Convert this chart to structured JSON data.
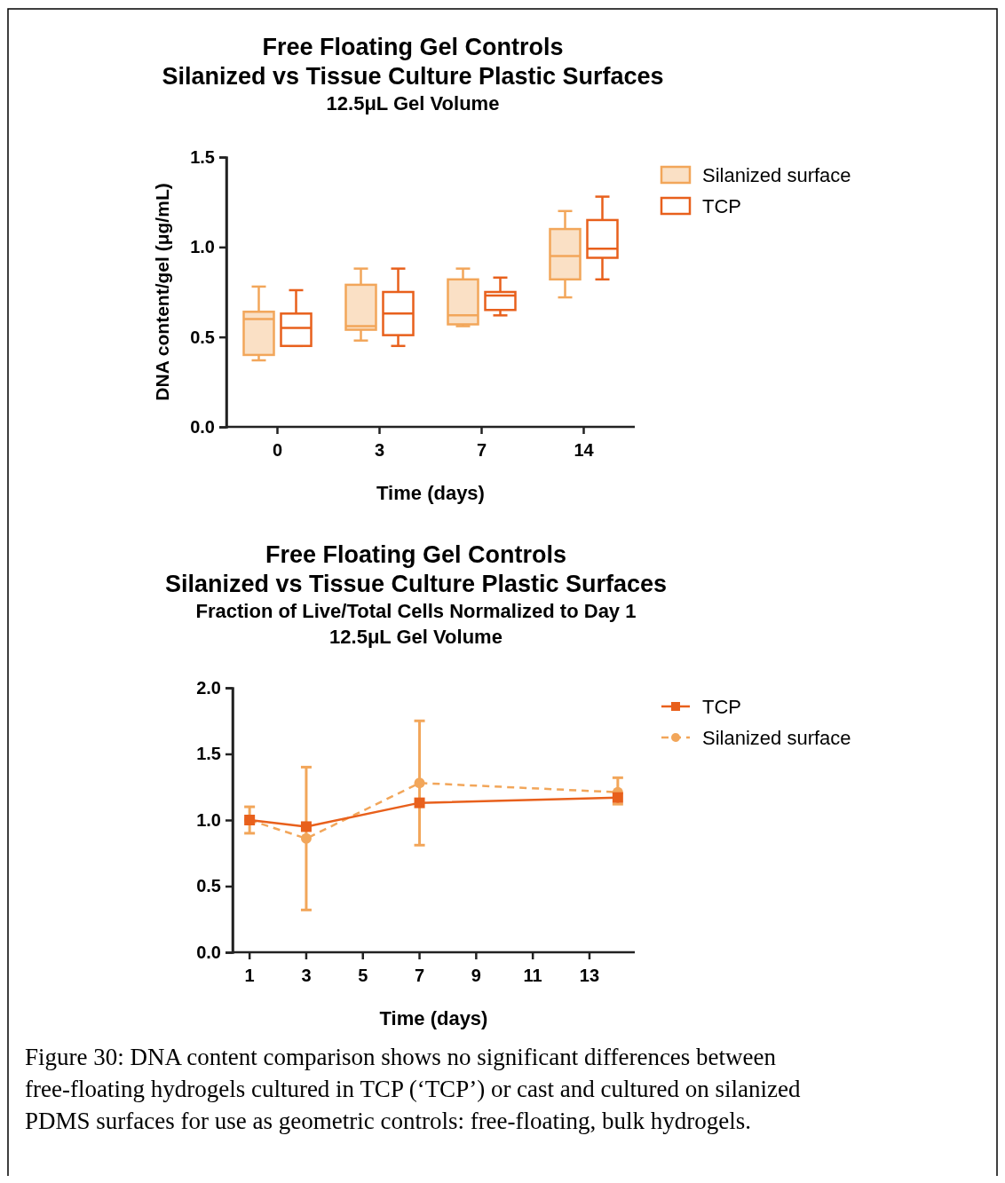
{
  "chart_data": [
    {
      "type": "box",
      "title": "Free Floating Gel Controls\nSilanized vs Tissue Culture Plastic Surfaces",
      "subtitle": "12.5μL Gel Volume",
      "xlabel": "Time (days)",
      "ylabel": "DNA content/gel (μg/mL)",
      "categories": [
        "0",
        "3",
        "7",
        "14"
      ],
      "ylim": [
        0,
        1.5
      ],
      "yticks": [
        {
          "value": 0,
          "label": "0.0"
        },
        {
          "value": 0.5,
          "label": "0.5"
        },
        {
          "value": 1,
          "label": "1.0"
        },
        {
          "value": 1.5,
          "label": "1.5"
        }
      ],
      "legend": "top right",
      "grid": false,
      "series": [
        {
          "name": "Silanized surface",
          "color": "#f2a65a",
          "boxes": [
            {
              "low": 0.37,
              "q1": 0.4,
              "median": 0.6,
              "q3": 0.64,
              "high": 0.78
            },
            {
              "low": 0.48,
              "q1": 0.54,
              "median": 0.56,
              "q3": 0.79,
              "high": 0.88
            },
            {
              "low": 0.56,
              "q1": 0.57,
              "median": 0.62,
              "q3": 0.82,
              "high": 0.88
            },
            {
              "low": 0.72,
              "q1": 0.82,
              "median": 0.95,
              "q3": 1.1,
              "high": 1.2
            }
          ]
        },
        {
          "name": "TCP",
          "color": "#e8601c",
          "boxes": [
            {
              "low": 0.45,
              "q1": 0.45,
              "median": 0.55,
              "q3": 0.63,
              "high": 0.76
            },
            {
              "low": 0.45,
              "q1": 0.51,
              "median": 0.63,
              "q3": 0.75,
              "high": 0.88
            },
            {
              "low": 0.62,
              "q1": 0.65,
              "median": 0.73,
              "q3": 0.75,
              "high": 0.83
            },
            {
              "low": 0.82,
              "q1": 0.94,
              "median": 0.99,
              "q3": 1.15,
              "high": 1.28
            }
          ]
        }
      ]
    },
    {
      "type": "line",
      "title": "Free Floating Gel Controls\nSilanized vs Tissue Culture Plastic Surfaces",
      "subtitle": "Fraction of Live/Total Cells Normalized to Day 1\n12.5μL Gel Volume",
      "xlabel": "Time (days)",
      "x": [
        1,
        3,
        7,
        14
      ],
      "xlim": [
        0.4,
        14.6
      ],
      "xticks": [
        1,
        3,
        5,
        7,
        9,
        11,
        13
      ],
      "ylim": [
        0,
        2
      ],
      "yticks": [
        {
          "value": 0,
          "label": "0.0"
        },
        {
          "value": 0.5,
          "label": "0.5"
        },
        {
          "value": 1,
          "label": "1.0"
        },
        {
          "value": 1.5,
          "label": "1.5"
        },
        {
          "value": 2,
          "label": "2.0"
        }
      ],
      "legend": "top right",
      "grid": false,
      "series": [
        {
          "name": "TCP",
          "color": "#e8601c",
          "marker": "square",
          "line_style": "solid",
          "values": [
            1.0,
            0.95,
            1.13,
            1.17
          ]
        },
        {
          "name": "Silanized surface",
          "color": "#f2a65a",
          "marker": "circle",
          "line_style": "dashed",
          "values": [
            1.0,
            0.86,
            1.28,
            1.21
          ],
          "errors": [
            [
              0.9,
              1.1
            ],
            [
              0.32,
              1.4
            ],
            [
              0.81,
              1.75
            ],
            [
              1.12,
              1.32
            ]
          ]
        }
      ],
      "annotations": [
        "Figure 30: DNA content comparison shows no significant differences between free-floating hydrogels cultured in TCP (‘TCP’) or cast and cultured on silanized PDMS surfaces for use as geometric controls: free-floating, bulk hydrogels."
      ]
    }
  ]
}
